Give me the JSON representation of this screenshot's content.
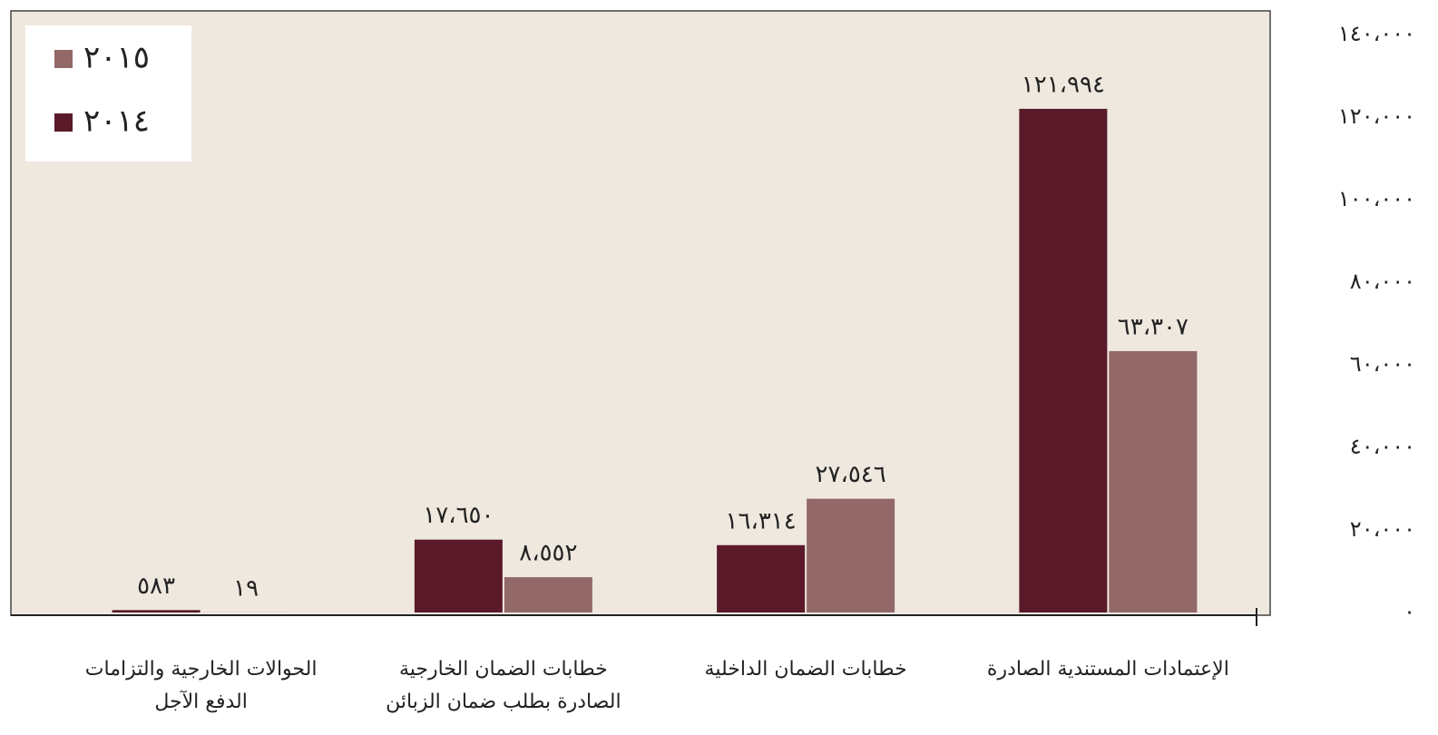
{
  "chart_data": {
    "type": "bar",
    "categories": [
      [
        "الإعتمادات المستندية الصادرة"
      ],
      [
        "خطابات الضمان الداخلية"
      ],
      [
        "خطابات الضمان الخارجية",
        "الصادرة بطلب ضمان الزبائن"
      ],
      [
        "الحوالات الخارجية والتزامات",
        "الدفع الآجل"
      ]
    ],
    "series": [
      {
        "name": "٢٠١٤",
        "color": "#5a1a2a",
        "values": [
          121994,
          16314,
          17650,
          583
        ],
        "value_labels": [
          "١٢١،٩٩٤",
          "١٦،٣١٤",
          "١٧،٦٥٠",
          "٥٨٣"
        ]
      },
      {
        "name": "٢٠١٥",
        "color": "#936868",
        "values": [
          63307,
          27546,
          8552,
          19
        ],
        "value_labels": [
          "٦٣،٣٠٧",
          "٢٧،٥٤٦",
          "٨،٥٥٢",
          "١٩"
        ]
      }
    ],
    "ylim": [
      0,
      140000
    ],
    "yticks": [
      {
        "value": 0,
        "label": "٠"
      },
      {
        "value": 20000,
        "label": "٢٠،٠٠٠"
      },
      {
        "value": 40000,
        "label": "٤٠،٠٠٠"
      },
      {
        "value": 60000,
        "label": "٦٠،٠٠٠"
      },
      {
        "value": 80000,
        "label": "٨٠،٠٠٠"
      },
      {
        "value": 100000,
        "label": "١٠٠،٠٠٠"
      },
      {
        "value": 120000,
        "label": "١٢٠،٠٠٠"
      },
      {
        "value": 140000,
        "label": "١٤٠،٠٠٠"
      }
    ],
    "grid": false,
    "legend": "top-left"
  }
}
